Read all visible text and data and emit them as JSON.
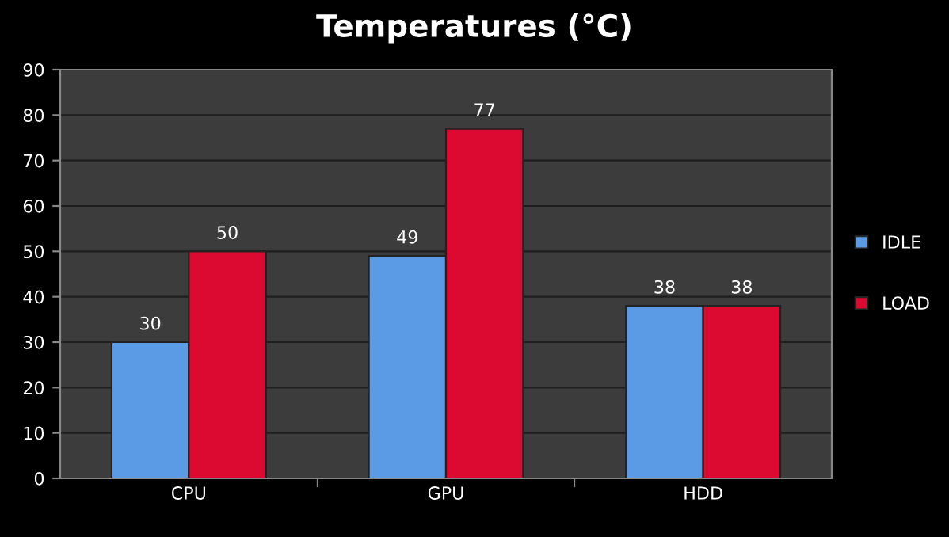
{
  "chart_data": {
    "type": "bar",
    "title": "Temperatures (°C)",
    "categories": [
      "CPU",
      "GPU",
      "HDD"
    ],
    "series": [
      {
        "name": "IDLE",
        "color": "#5b9be6",
        "values": [
          30,
          49,
          38
        ]
      },
      {
        "name": "LOAD",
        "color": "#dc0a30",
        "values": [
          50,
          77,
          38
        ]
      }
    ],
    "ylim": [
      0,
      90
    ],
    "yticks": [
      0,
      10,
      20,
      30,
      40,
      50,
      60,
      70,
      80,
      90
    ],
    "grid": "y",
    "legend": "right",
    "data_labels": true
  }
}
